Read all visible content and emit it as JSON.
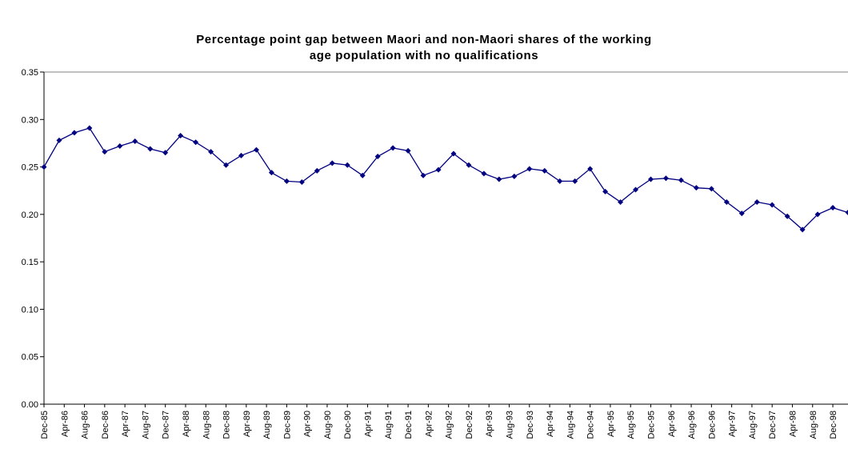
{
  "chart_data": {
    "type": "line",
    "title": [
      "Percentage point gap between Maori and non-Maori shares of the working",
      "age population with no qualifications"
    ],
    "x": [
      "1985-12",
      "1986-03",
      "1986-06",
      "1986-09",
      "1986-12",
      "1987-03",
      "1987-06",
      "1987-09",
      "1987-12",
      "1988-03",
      "1988-06",
      "1988-09",
      "1988-12",
      "1989-03",
      "1989-06",
      "1989-09",
      "1989-12",
      "1990-03",
      "1990-06",
      "1990-09",
      "1990-12",
      "1991-03",
      "1991-06",
      "1991-09",
      "1991-12",
      "1992-03",
      "1992-06",
      "1992-09",
      "1992-12",
      "1993-03",
      "1993-06",
      "1993-09",
      "1993-12",
      "1994-03",
      "1994-06",
      "1994-09",
      "1994-12",
      "1995-03",
      "1995-06",
      "1995-09",
      "1995-12",
      "1996-03",
      "1996-06",
      "1996-09",
      "1996-12",
      "1997-03",
      "1997-06",
      "1997-09",
      "1997-12",
      "1998-03",
      "1998-06",
      "1998-09",
      "1998-12",
      "1999-03"
    ],
    "series": [
      {
        "color": "#000080",
        "values": [
          0.25,
          0.278,
          0.286,
          0.291,
          0.266,
          0.272,
          0.277,
          0.269,
          0.265,
          0.283,
          0.276,
          0.266,
          0.252,
          0.262,
          0.268,
          0.244,
          0.235,
          0.234,
          0.246,
          0.254,
          0.252,
          0.241,
          0.261,
          0.27,
          0.267,
          0.241,
          0.247,
          0.264,
          0.252,
          0.243,
          0.237,
          0.24,
          0.248,
          0.246,
          0.235,
          0.235,
          0.248,
          0.224,
          0.213,
          0.226,
          0.237,
          0.238,
          0.236,
          0.228,
          0.227,
          0.213,
          0.201,
          0.213,
          0.21,
          0.198,
          0.184,
          0.2,
          0.207,
          0.202
        ]
      }
    ],
    "xlim": [
      "1985-12",
      "1999-03"
    ],
    "xticks": [
      {
        "value": "1985-12",
        "label": "Dec-85"
      },
      {
        "value": "1986-04",
        "label": "Apr-86"
      },
      {
        "value": "1986-08",
        "label": "Aug-86"
      },
      {
        "value": "1986-12",
        "label": "Dec-86"
      },
      {
        "value": "1987-04",
        "label": "Apr-87"
      },
      {
        "value": "1987-08",
        "label": "Aug-87"
      },
      {
        "value": "1987-12",
        "label": "Dec-87"
      },
      {
        "value": "1988-04",
        "label": "Apr-88"
      },
      {
        "value": "1988-08",
        "label": "Aug-88"
      },
      {
        "value": "1988-12",
        "label": "Dec-88"
      },
      {
        "value": "1989-04",
        "label": "Apr-89"
      },
      {
        "value": "1989-08",
        "label": "Aug-89"
      },
      {
        "value": "1989-12",
        "label": "Dec-89"
      },
      {
        "value": "1990-04",
        "label": "Apr-90"
      },
      {
        "value": "1990-08",
        "label": "Aug-90"
      },
      {
        "value": "1990-12",
        "label": "Dec-90"
      },
      {
        "value": "1991-04",
        "label": "Apr-91"
      },
      {
        "value": "1991-08",
        "label": "Aug-91"
      },
      {
        "value": "1991-12",
        "label": "Dec-91"
      },
      {
        "value": "1992-04",
        "label": "Apr-92"
      },
      {
        "value": "1992-08",
        "label": "Aug-92"
      },
      {
        "value": "1992-12",
        "label": "Dec-92"
      },
      {
        "value": "1993-04",
        "label": "Apr-93"
      },
      {
        "value": "1993-08",
        "label": "Aug-93"
      },
      {
        "value": "1993-12",
        "label": "Dec-93"
      },
      {
        "value": "1994-04",
        "label": "Apr-94"
      },
      {
        "value": "1994-08",
        "label": "Aug-94"
      },
      {
        "value": "1994-12",
        "label": "Dec-94"
      },
      {
        "value": "1995-04",
        "label": "Apr-95"
      },
      {
        "value": "1995-08",
        "label": "Aug-95"
      },
      {
        "value": "1995-12",
        "label": "Dec-95"
      },
      {
        "value": "1996-04",
        "label": "Apr-96"
      },
      {
        "value": "1996-08",
        "label": "Aug-96"
      },
      {
        "value": "1996-12",
        "label": "Dec-96"
      },
      {
        "value": "1997-04",
        "label": "Apr-97"
      },
      {
        "value": "1997-08",
        "label": "Aug-97"
      },
      {
        "value": "1997-12",
        "label": "Dec-97"
      },
      {
        "value": "1998-04",
        "label": "Apr-98"
      },
      {
        "value": "1998-08",
        "label": "Aug-98"
      },
      {
        "value": "1998-12",
        "label": "Dec-98"
      }
    ],
    "ylim": [
      0,
      0.35
    ],
    "yticks": [
      {
        "value": 0,
        "label": "0.00"
      },
      {
        "value": 0.05,
        "label": "0.05"
      },
      {
        "value": 0.1,
        "label": "0.10"
      },
      {
        "value": 0.15,
        "label": "0.15"
      },
      {
        "value": 0.2,
        "label": "0.20"
      },
      {
        "value": 0.25,
        "label": "0.25"
      },
      {
        "value": 0.3,
        "label": "0.30"
      },
      {
        "value": 0.35,
        "label": "0.35"
      }
    ],
    "grid": false
  }
}
